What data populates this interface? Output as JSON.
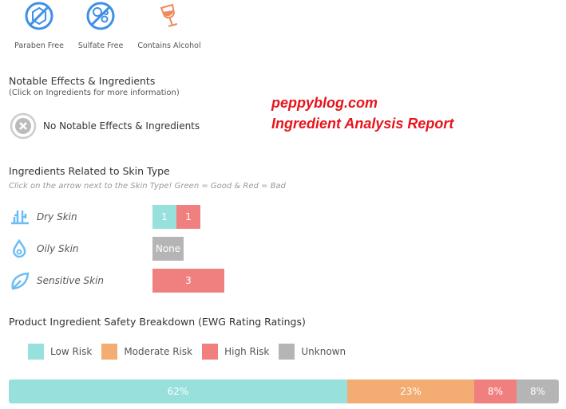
{
  "badges": [
    {
      "label": "Paraben Free",
      "icon": "no-paraben-icon"
    },
    {
      "label": "Sulfate Free",
      "icon": "no-sulfate-icon"
    },
    {
      "label": "Contains Alcohol",
      "icon": "wine-glass-icon"
    }
  ],
  "notable": {
    "title": "Notable Effects & Ingredients",
    "subtitle": "(Click on Ingredients for more information)",
    "empty": "No Notable Effects & Ingredients"
  },
  "watermark": {
    "line1": "peppyblog.com",
    "line2": "Ingredient Analysis Report"
  },
  "skin": {
    "title": "Ingredients Related to Skin Type",
    "note": "Click on the arrow next to the Skin Type! Green = Good & Red = Bad",
    "rows": [
      {
        "label": "Dry Skin",
        "good": "1",
        "bad": "1"
      },
      {
        "label": "Oily Skin",
        "none": "None"
      },
      {
        "label": "Sensitive Skin",
        "bad": "3"
      }
    ]
  },
  "safety": {
    "title": "Product Ingredient Safety Breakdown (EWG Rating Ratings)",
    "legend": [
      {
        "label": "Low Risk",
        "color": "#98e0dc"
      },
      {
        "label": "Moderate Risk",
        "color": "#f3ad72"
      },
      {
        "label": "High Risk",
        "color": "#f08080"
      },
      {
        "label": "Unknown",
        "color": "#b5b5b5"
      }
    ],
    "values": [
      "62%",
      "23%",
      "8%",
      "8%"
    ]
  },
  "colors": {
    "good": "#98e0dc",
    "bad": "#f08080",
    "none": "#b5b5b5",
    "icon_blue": "#3d8fe8",
    "icon_orange": "#ee8a5e"
  }
}
